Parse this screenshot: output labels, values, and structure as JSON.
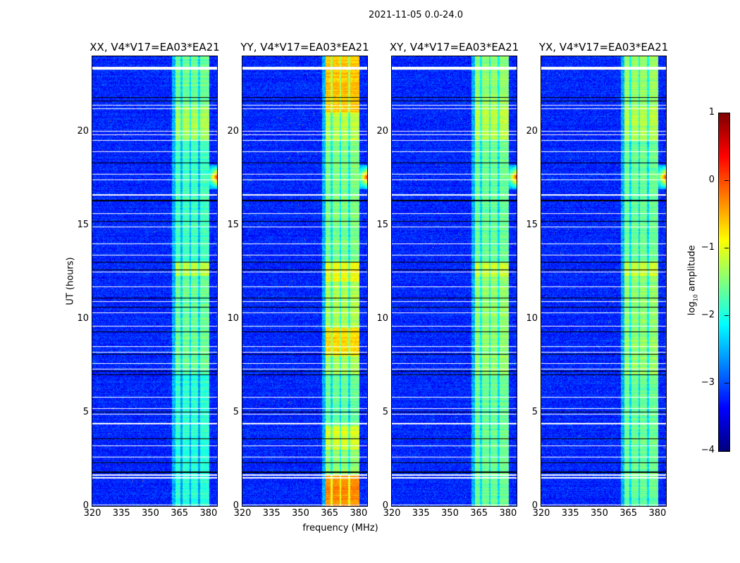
{
  "chart_data": {
    "type": "heatmap",
    "title": "2021-11-05 0.0-24.0",
    "xlabel": "frequency (MHz)",
    "ylabel": "UT (hours)",
    "xlim": [
      320,
      384.4
    ],
    "ylim": [
      0,
      24
    ],
    "xticks": [
      320,
      335,
      350,
      365,
      380
    ],
    "yticks": [
      0,
      5,
      10,
      15,
      20
    ],
    "colormap": "jet",
    "colorbar": {
      "label_parts": [
        "log",
        "10",
        " amplitude"
      ],
      "range": [
        -4,
        1
      ],
      "ticks": [
        1,
        0,
        -1,
        -2,
        -3,
        -4
      ]
    },
    "background_level": -3.2,
    "band_mhz": [
      363,
      380.5
    ],
    "band_edge_mhz": [
      361,
      363
    ],
    "band_gaps_mhz": [
      366,
      370.5,
      375.2
    ],
    "rfi": {
      "mhz": [
        379,
        384.4
      ],
      "hours": [
        16.9,
        18.2
      ],
      "peak_level": 0.3
    },
    "flagged_white_hours": [
      0.05,
      1.5,
      1.65,
      2.6,
      3.2,
      4.4,
      4.9,
      5.2,
      5.8,
      7.3,
      7.6,
      8.2,
      8.5,
      9.6,
      10.3,
      10.9,
      11.7,
      12.5,
      13.4,
      14.0,
      14.9,
      15.6,
      16.6,
      17.4,
      17.7,
      18.9,
      19.5,
      19.8,
      20.0,
      21.2,
      21.4,
      23.35
    ],
    "black_line_hours": [
      1.8,
      2.3,
      3.6,
      5.0,
      7.0,
      7.2,
      8.1,
      9.3,
      10.6,
      11.1,
      12.6,
      13.0,
      15.2,
      16.3,
      18.3,
      21.6,
      21.8
    ],
    "panels": [
      {
        "title": "XX, V4*V17=EA03*EA21",
        "band_levels": [
          [
            0,
            7,
            -1.9
          ],
          [
            7,
            12.3,
            -1.6
          ],
          [
            12.3,
            13,
            -1.2
          ],
          [
            13,
            19.5,
            -1.8
          ],
          [
            19.5,
            21.3,
            -1.3
          ],
          [
            21.3,
            24,
            -1.6
          ]
        ]
      },
      {
        "title": "YY, V4*V17=EA03*EA21",
        "band_levels": [
          [
            0,
            1.6,
            -0.3
          ],
          [
            1.6,
            3,
            -1.4
          ],
          [
            3,
            4.3,
            -1.1
          ],
          [
            4.3,
            7,
            -1.6
          ],
          [
            7,
            8,
            -1.3
          ],
          [
            8,
            9.5,
            -0.7
          ],
          [
            9.5,
            12,
            -1.3
          ],
          [
            12,
            13,
            -0.9
          ],
          [
            13,
            19.5,
            -1.5
          ],
          [
            19.5,
            21,
            -1.2
          ],
          [
            21,
            24,
            -0.6
          ]
        ]
      },
      {
        "title": "XY, V4*V17=EA03*EA21",
        "band_levels": [
          [
            0,
            7,
            -1.6
          ],
          [
            7,
            12.3,
            -1.4
          ],
          [
            12.3,
            13,
            -1.1
          ],
          [
            13,
            19.5,
            -1.6
          ],
          [
            19.5,
            21.3,
            -1.2
          ],
          [
            21.3,
            24,
            -1.4
          ]
        ]
      },
      {
        "title": "YX, V4*V17=EA03*EA21",
        "band_levels": [
          [
            0,
            7,
            -1.6
          ],
          [
            7,
            12.3,
            -1.4
          ],
          [
            12.3,
            13,
            -1.1
          ],
          [
            13,
            19.5,
            -1.6
          ],
          [
            19.5,
            21.3,
            -1.2
          ],
          [
            21.3,
            24,
            -1.4
          ]
        ]
      }
    ]
  }
}
